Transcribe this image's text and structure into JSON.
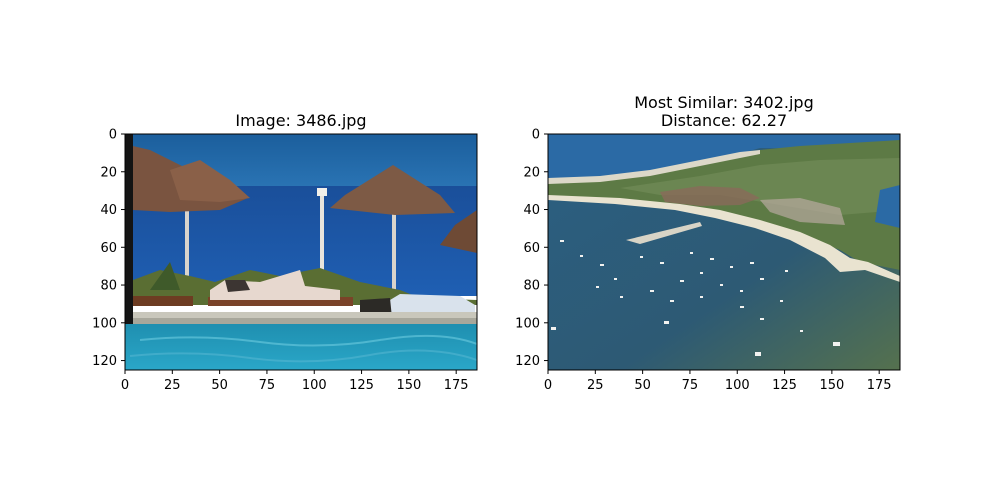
{
  "chart_data": [
    {
      "type": "image",
      "title_lines": [
        "Image: 3486.jpg"
      ],
      "xlim": [
        0,
        186
      ],
      "ylim": [
        125,
        0
      ],
      "xticks": [
        0,
        25,
        50,
        75,
        100,
        125,
        150,
        175
      ],
      "yticks": [
        0,
        20,
        40,
        60,
        80,
        100,
        120
      ],
      "scene": "beach-resort-pool"
    },
    {
      "type": "image",
      "title_lines": [
        "Most Similar: 3402.jpg",
        "Distance: 62.27"
      ],
      "xlim": [
        0,
        186
      ],
      "ylim": [
        125,
        0
      ],
      "xticks": [
        0,
        25,
        50,
        75,
        100,
        125,
        150,
        175
      ],
      "yticks": [
        0,
        20,
        40,
        60,
        80,
        100,
        120
      ],
      "scene": "aerial-harbor-coast"
    }
  ]
}
